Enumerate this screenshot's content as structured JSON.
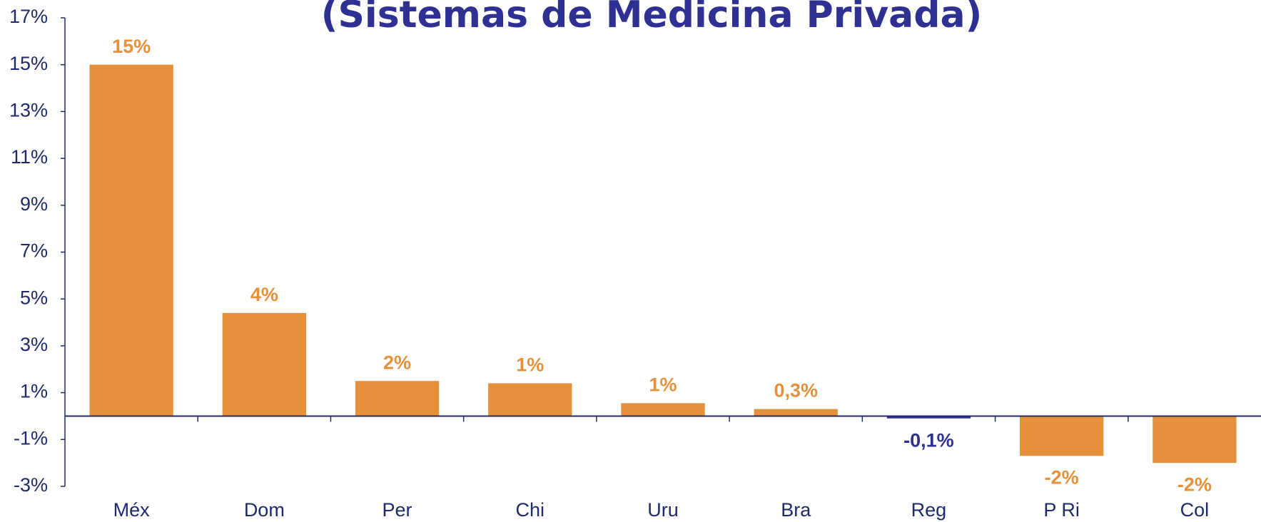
{
  "chart_data": {
    "type": "bar",
    "title": "(Sistemas de Medicina Privada)",
    "categories": [
      "Méx",
      "Dom",
      "Per",
      "Chi",
      "Uru",
      "Bra",
      "Reg",
      "P Ri",
      "Col"
    ],
    "values": [
      15.0,
      4.4,
      1.5,
      1.4,
      0.55,
      0.3,
      -0.1,
      -1.7,
      -2.0
    ],
    "value_labels": [
      "15%",
      "4%",
      "2%",
      "1%",
      "1%",
      "0,3%",
      "-0,1%",
      "-2%",
      "-2%"
    ],
    "colors": [
      "#e5903a",
      "#e5903a",
      "#e5903a",
      "#e5903a",
      "#e5903a",
      "#e5903a",
      "#2e3192",
      "#e5903a",
      "#e5903a"
    ],
    "ylim": [
      -3,
      17
    ],
    "yticks": [
      {
        "value": -3,
        "label": "-3%"
      },
      {
        "value": -1,
        "label": "-1%"
      },
      {
        "value": 1,
        "label": "1%"
      },
      {
        "value": 3,
        "label": "3%"
      },
      {
        "value": 5,
        "label": "5%"
      },
      {
        "value": 7,
        "label": "7%"
      },
      {
        "value": 9,
        "label": "9%"
      },
      {
        "value": 11,
        "label": "11%"
      },
      {
        "value": 13,
        "label": "13%"
      },
      {
        "value": 15,
        "label": "15%"
      },
      {
        "value": 17,
        "label": "17%"
      }
    ],
    "grid": false
  }
}
